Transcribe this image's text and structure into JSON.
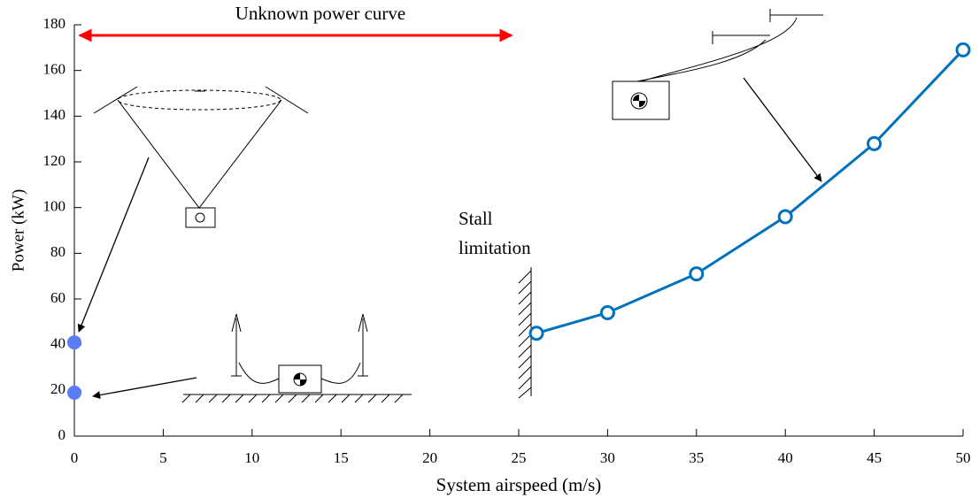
{
  "chart_data": {
    "type": "line",
    "xlabel": "System airspeed (m/s)",
    "ylabel": "Power (kW)",
    "annotations": {
      "range_label": "Unknown power curve",
      "stall_label": [
        "Stall",
        "limitation"
      ]
    },
    "series": [
      {
        "type": "line",
        "color": "#0072bd",
        "x": [
          26,
          30,
          35,
          40,
          45,
          50
        ],
        "values": [
          45,
          54,
          71,
          96,
          128,
          169
        ]
      },
      {
        "type": "scatter",
        "color": "#5b7cf5",
        "x": [
          0,
          0
        ],
        "values": [
          41,
          19
        ]
      }
    ],
    "xlim": [
      0,
      50
    ],
    "xticks": [
      0,
      5,
      10,
      15,
      20,
      25,
      30,
      35,
      40,
      45,
      50
    ],
    "ylim": [
      0,
      180
    ],
    "yticks": [
      0,
      20,
      40,
      60,
      80,
      100,
      120,
      140,
      160,
      180
    ]
  }
}
